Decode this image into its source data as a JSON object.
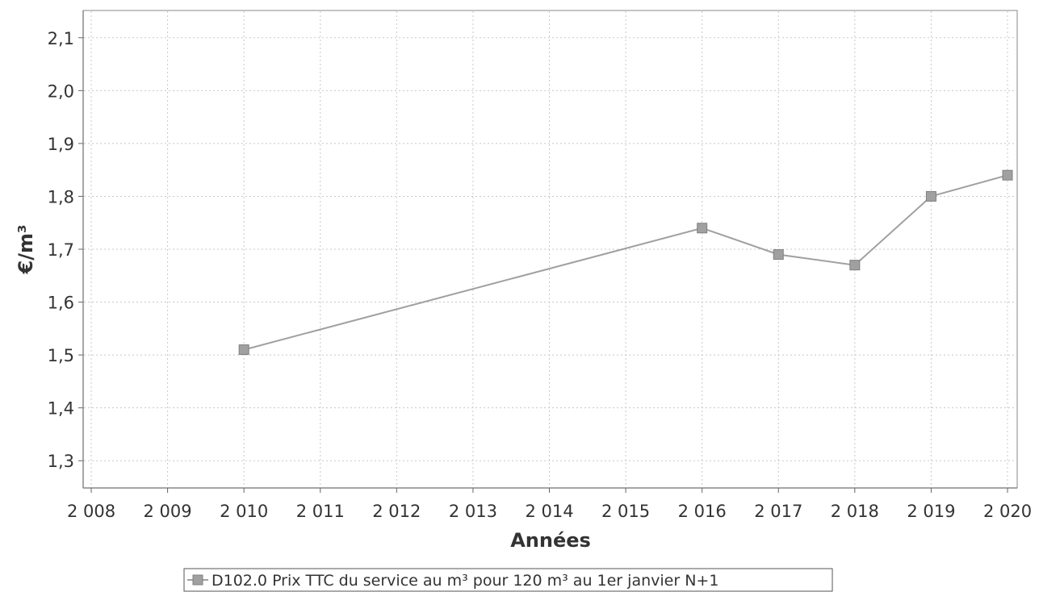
{
  "chart_data": {
    "type": "line",
    "title": "",
    "xlabel": "Années",
    "ylabel": "€/m³",
    "xlim": [
      2008,
      2020
    ],
    "ylim": [
      1.25,
      2.15
    ],
    "x_ticks": [
      2008,
      2009,
      2010,
      2011,
      2012,
      2013,
      2014,
      2015,
      2016,
      2017,
      2018,
      2019,
      2020
    ],
    "x_tick_labels": [
      "2 008",
      "2 009",
      "2 010",
      "2 011",
      "2 012",
      "2 013",
      "2 014",
      "2 015",
      "2 016",
      "2 017",
      "2 018",
      "2 019",
      "2 020"
    ],
    "y_ticks": [
      1.3,
      1.4,
      1.5,
      1.6,
      1.7,
      1.8,
      1.9,
      2.0,
      2.1
    ],
    "y_tick_labels": [
      "1,3",
      "1,4",
      "1,5",
      "1,6",
      "1,7",
      "1,8",
      "1,9",
      "2,0",
      "2,1"
    ],
    "grid": true,
    "legend_position": "bottom-center",
    "series": [
      {
        "name": "D102.0 Prix TTC du service au m³ pour 120 m³ au 1er janvier N+1",
        "color": "#a0a0a0",
        "marker": "square",
        "x": [
          2010,
          2016,
          2017,
          2018,
          2019,
          2020
        ],
        "y": [
          1.51,
          1.74,
          1.69,
          1.67,
          1.8,
          1.84
        ]
      }
    ]
  }
}
